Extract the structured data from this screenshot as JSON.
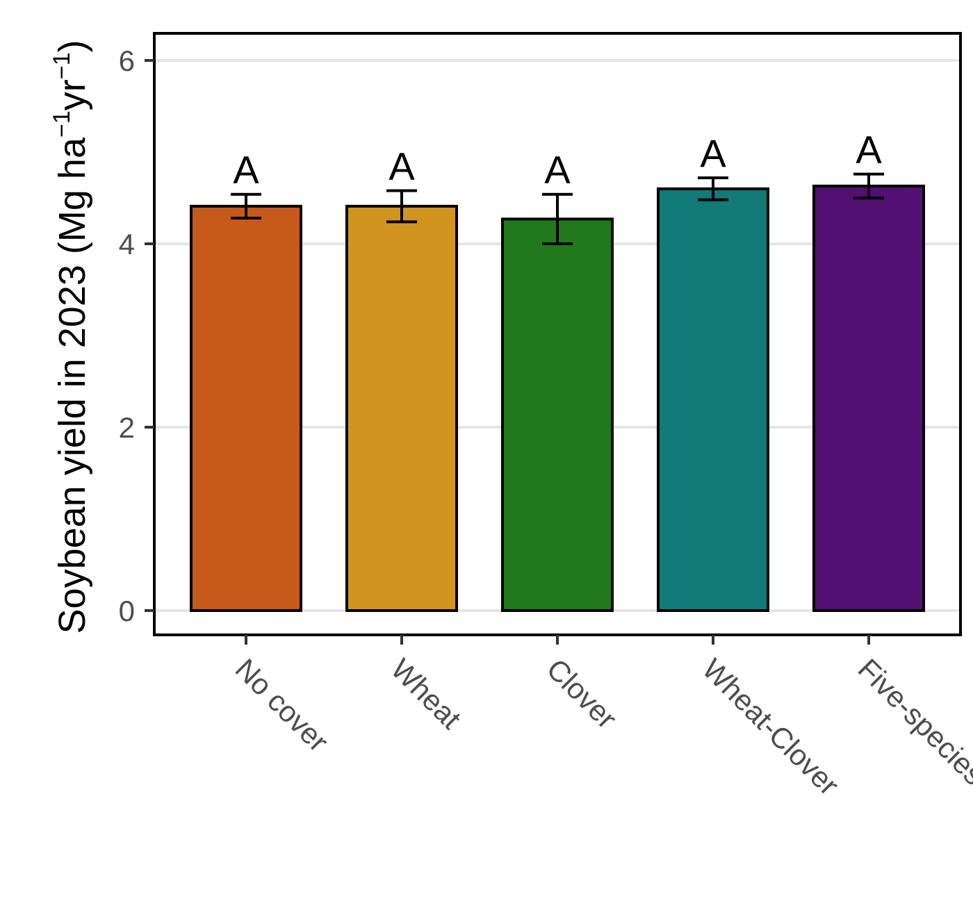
{
  "chart_data": {
    "type": "bar",
    "title": "",
    "xlabel": "",
    "ylabel_prefix": "Soybean yield in 2023 (Mg ha",
    "ylabel_sup1": "−1",
    "ylabel_mid": "yr",
    "ylabel_sup2": "−1",
    "ylabel_suffix": ")",
    "categories": [
      "No cover",
      "Wheat",
      "Clover",
      "Wheat-Clover",
      "Five-species mix"
    ],
    "values": [
      4.41,
      4.41,
      4.27,
      4.6,
      4.63
    ],
    "errors": [
      0.13,
      0.17,
      0.27,
      0.12,
      0.13
    ],
    "significance": [
      "A",
      "A",
      "A",
      "A",
      "A"
    ],
    "colors": [
      "#C55A1A",
      "#D1951F",
      "#21791B",
      "#127B78",
      "#521072"
    ],
    "ylim": [
      -0.27,
      6.3
    ],
    "yticks": [
      0,
      2,
      4,
      6
    ],
    "grid": true
  }
}
